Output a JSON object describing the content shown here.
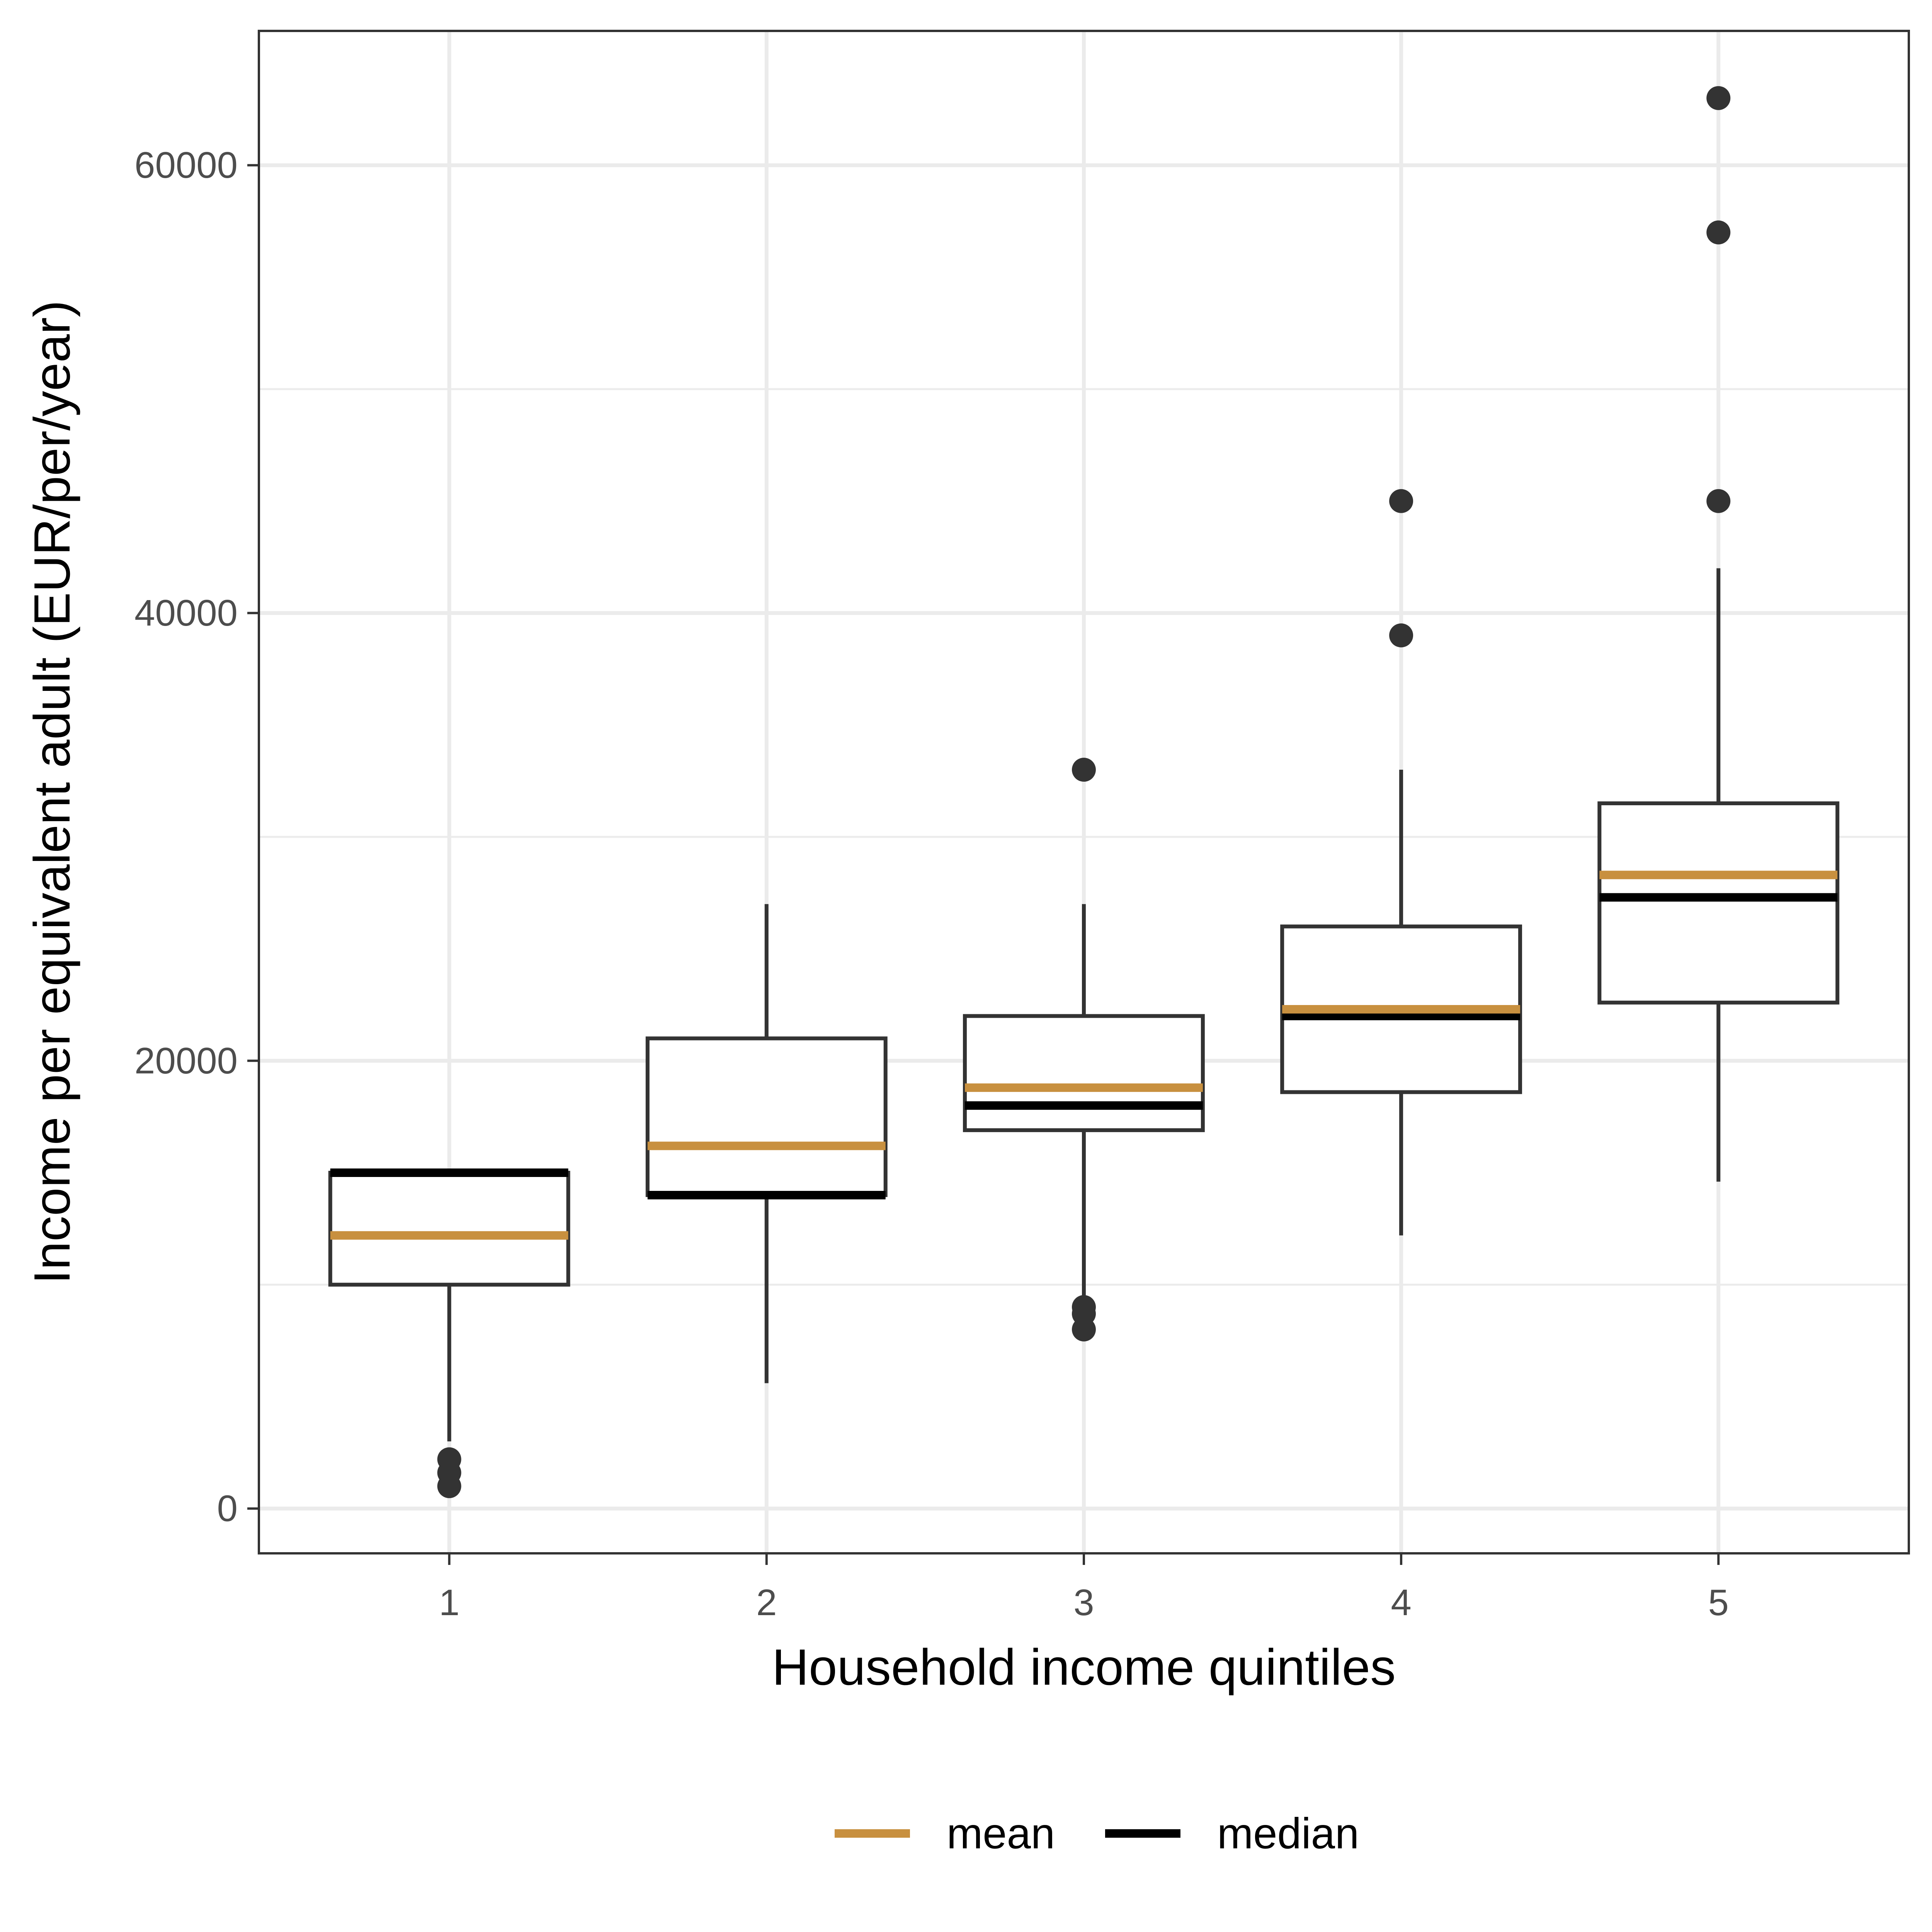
{
  "chart_data": {
    "type": "boxplot",
    "title": "",
    "xlabel": "Household income quintiles",
    "ylabel": "Income per equivalent adult (EUR/per/year)",
    "categories": [
      "1",
      "2",
      "3",
      "4",
      "5"
    ],
    "ylim": [
      -2000,
      66000
    ],
    "yticks": [
      0,
      20000,
      40000,
      60000
    ],
    "ytick_labels": [
      "0",
      "20000",
      "40000",
      "60000"
    ],
    "grid": true,
    "boxes": [
      {
        "category": "1",
        "whisker_low": 3000,
        "q1": 10000,
        "median": 15000,
        "q3": 15000,
        "whisker_high": 15000,
        "mean": 12200,
        "outliers": [
          2200,
          1600,
          1000
        ]
      },
      {
        "category": "2",
        "whisker_low": 5600,
        "q1": 14000,
        "median": 14000,
        "q3": 21000,
        "whisker_high": 27000,
        "mean": 16200,
        "outliers": []
      },
      {
        "category": "3",
        "whisker_low": 9500,
        "q1": 16900,
        "median": 18000,
        "q3": 22000,
        "whisker_high": 27000,
        "mean": 18800,
        "outliers": [
          33000,
          9000,
          8700,
          8000
        ]
      },
      {
        "category": "4",
        "whisker_low": 12200,
        "q1": 18600,
        "median": 22000,
        "q3": 26000,
        "whisker_high": 33000,
        "mean": 22300,
        "outliers": [
          45000,
          39000
        ]
      },
      {
        "category": "5",
        "whisker_low": 14600,
        "q1": 22600,
        "median": 27300,
        "q3": 31500,
        "whisker_high": 42000,
        "mean": 28300,
        "outliers": [
          63000,
          57000,
          45000
        ]
      }
    ],
    "legend": {
      "position": "bottom",
      "entries": [
        {
          "label": "mean",
          "color": "#C8903F"
        },
        {
          "label": "median",
          "color": "#000000"
        }
      ]
    },
    "colors": {
      "mean": "#C8903F",
      "median": "#000000",
      "box_outline": "#333333",
      "outlier": "#333333",
      "grid": "#EBEBEB",
      "panel_border": "#333333"
    }
  }
}
